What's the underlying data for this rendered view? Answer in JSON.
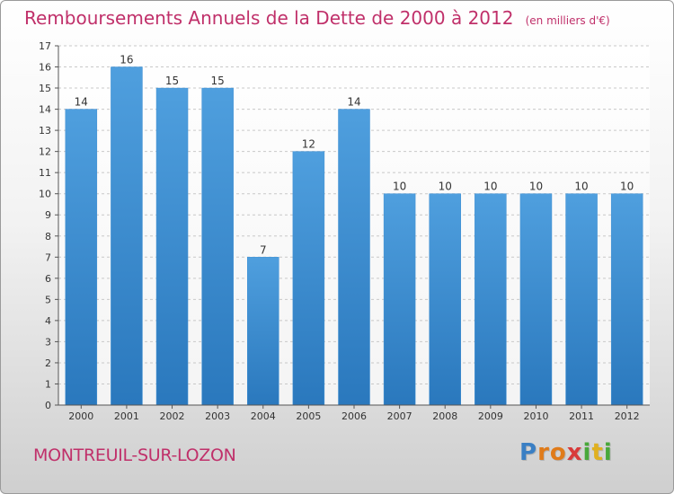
{
  "chart_data": {
    "type": "bar",
    "title": "Remboursements Annuels de la Dette de 2000 à 2012",
    "unit_note": "(en milliers d'€)",
    "categories": [
      "2000",
      "2001",
      "2002",
      "2003",
      "2004",
      "2005",
      "2006",
      "2007",
      "2008",
      "2009",
      "2010",
      "2011",
      "2012"
    ],
    "values": [
      14,
      16,
      15,
      15,
      7,
      12,
      14,
      10,
      10,
      10,
      10,
      10,
      10
    ],
    "ylim": [
      0,
      17
    ],
    "yticks": [
      0,
      1,
      2,
      3,
      4,
      5,
      6,
      7,
      8,
      9,
      10,
      11,
      12,
      13,
      14,
      15,
      16,
      17
    ],
    "xlabel": "",
    "ylabel": "",
    "grid": true,
    "bar_color": "#4f9fde",
    "bar_color_dark": "#2a78bd",
    "data_labels": true
  },
  "commune": "MONTREUIL-SUR-LOZON",
  "logo": {
    "letters": [
      "P",
      "r",
      "o",
      "x",
      "i",
      "t",
      "i"
    ],
    "colors": [
      "#3a7fc4",
      "#e07b1a",
      "#e07b1a",
      "#d83a3a",
      "#48a83a",
      "#e0b020",
      "#48a83a"
    ]
  },
  "colors": {
    "accent": "#c0306a",
    "axis_text": "#333333",
    "grid": "#c8c8c8"
  }
}
